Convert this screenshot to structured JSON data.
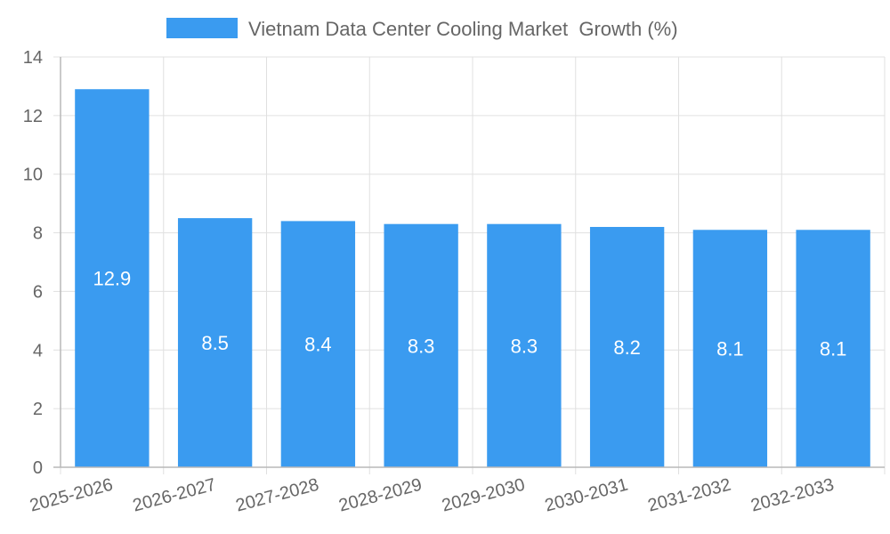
{
  "chart_data": {
    "type": "bar",
    "title": "",
    "categories": [
      "2025-2026",
      "2026-2027",
      "2027-2028",
      "2028-2029",
      "2029-2030",
      "2030-2031",
      "2031-2032",
      "2032-2033"
    ],
    "series": [
      {
        "name": "Vietnam Data Center Cooling Market  Growth (%)",
        "values": [
          12.9,
          8.5,
          8.4,
          8.3,
          8.3,
          8.2,
          8.1,
          8.1
        ],
        "color": "#3a9bf0"
      }
    ],
    "xlabel": "",
    "ylabel": "",
    "ylim": [
      0,
      14
    ],
    "yticks": [
      0,
      2,
      4,
      6,
      8,
      10,
      12,
      14
    ],
    "grid": true,
    "legend": "top-center",
    "data_labels": true
  }
}
